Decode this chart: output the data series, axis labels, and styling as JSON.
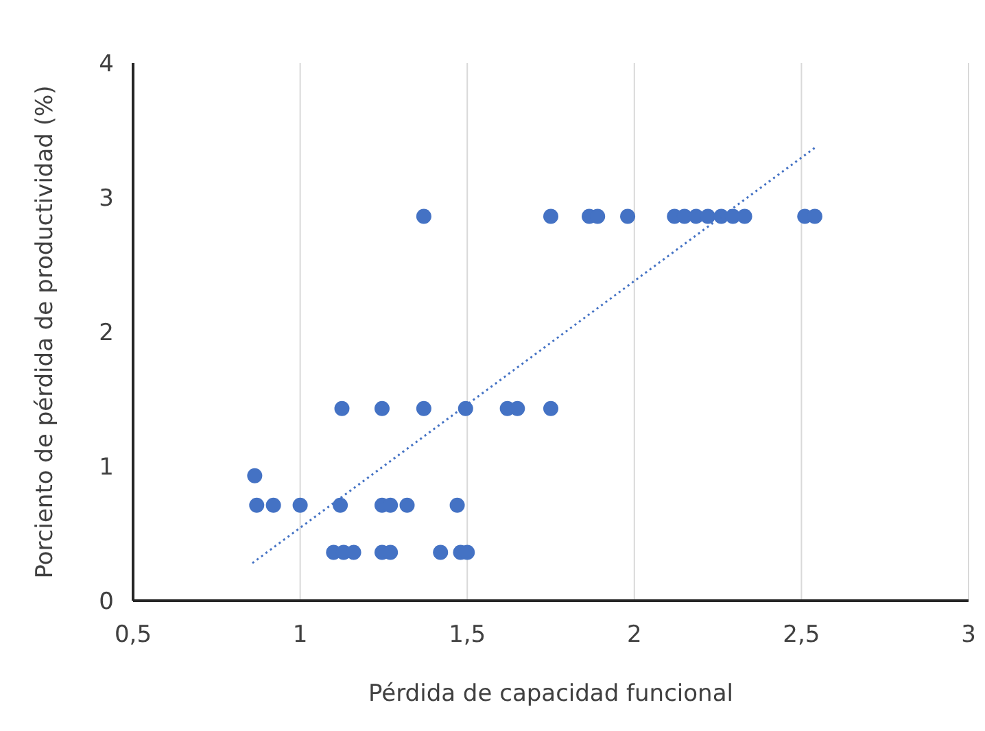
{
  "chart_data": {
    "type": "scatter",
    "xlabel": "Pérdida de capacidad funcional",
    "ylabel": "Porciento de pérdida de productividad (%)",
    "xlim": [
      0.5,
      3
    ],
    "xticks": [
      {
        "value": 0.5,
        "label": "0,5"
      },
      1,
      {
        "value": 1.5,
        "label": "1,5"
      },
      2,
      {
        "value": 2.5,
        "label": "2,5"
      },
      3
    ],
    "ylim": [
      0,
      4
    ],
    "yticks": [
      0,
      1,
      2,
      3,
      4
    ],
    "grid": "x",
    "marker": "circle",
    "series": [
      {
        "color": "#4472c4",
        "x": [
          1.37,
          1.75,
          1.865,
          1.89,
          1.98,
          2.12,
          2.15,
          2.185,
          2.22,
          2.26,
          2.295,
          2.33,
          2.51,
          2.54,
          1.125,
          1.245,
          1.37,
          1.495,
          1.62,
          1.65,
          1.75,
          0.864,
          0.87,
          0.92,
          1.0,
          1.12,
          1.245,
          1.27,
          1.32,
          1.47,
          1.1,
          1.13,
          1.16,
          1.245,
          1.27,
          1.42,
          1.48,
          1.5
        ],
        "values": [
          2.86,
          2.86,
          2.86,
          2.86,
          2.86,
          2.86,
          2.86,
          2.86,
          2.86,
          2.86,
          2.86,
          2.86,
          2.86,
          2.86,
          1.43,
          1.43,
          1.43,
          1.43,
          1.43,
          1.43,
          1.43,
          0.93,
          0.71,
          0.71,
          0.71,
          0.71,
          0.71,
          0.71,
          0.71,
          0.71,
          0.36,
          0.36,
          0.36,
          0.36,
          0.36,
          0.36,
          0.36,
          0.36
        ]
      },
      {
        "type": "line",
        "color": "#4472c4",
        "line_style": "dotted",
        "marker": "none",
        "x": [
          0.857,
          2.54
        ],
        "values": [
          0.28,
          3.37
        ]
      }
    ]
  }
}
